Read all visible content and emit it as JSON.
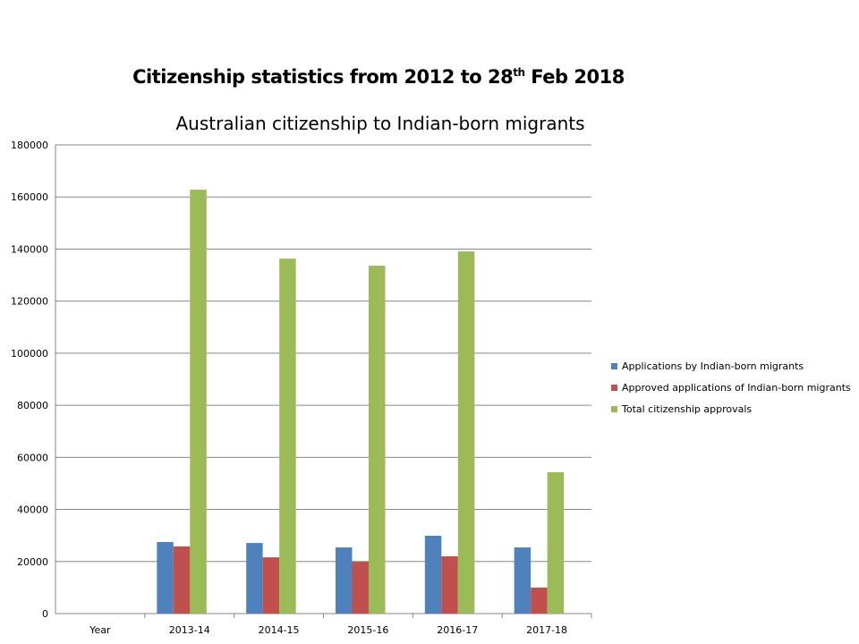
{
  "title_main": "Citizenship statistics from 2012 to 28",
  "title_sup": "th",
  "title_end": " Feb 2018",
  "chart_data": {
    "type": "bar",
    "title": "Australian citizenship to Indian-born migrants",
    "categories": [
      "Year",
      "2013-14",
      "2014-15",
      "2015-16",
      "2016-17",
      "2017-18"
    ],
    "series": [
      {
        "name": "Applications by Indian-born migrants",
        "color": "#4f81bd",
        "values": [
          null,
          27500,
          27100,
          25400,
          29900,
          25400
        ]
      },
      {
        "name": "Approved applications of Indian-born migrants",
        "color": "#c0504d",
        "values": [
          null,
          25800,
          21600,
          19900,
          22000,
          10000
        ]
      },
      {
        "name": "Total citizenship approvals",
        "color": "#9bbb59",
        "values": [
          null,
          162800,
          136300,
          133600,
          139100,
          54300
        ]
      }
    ],
    "ylim": [
      0,
      180000
    ],
    "yticks": [
      0,
      20000,
      40000,
      60000,
      80000,
      100000,
      120000,
      140000,
      160000,
      180000
    ],
    "grid": true,
    "legend": "right"
  }
}
